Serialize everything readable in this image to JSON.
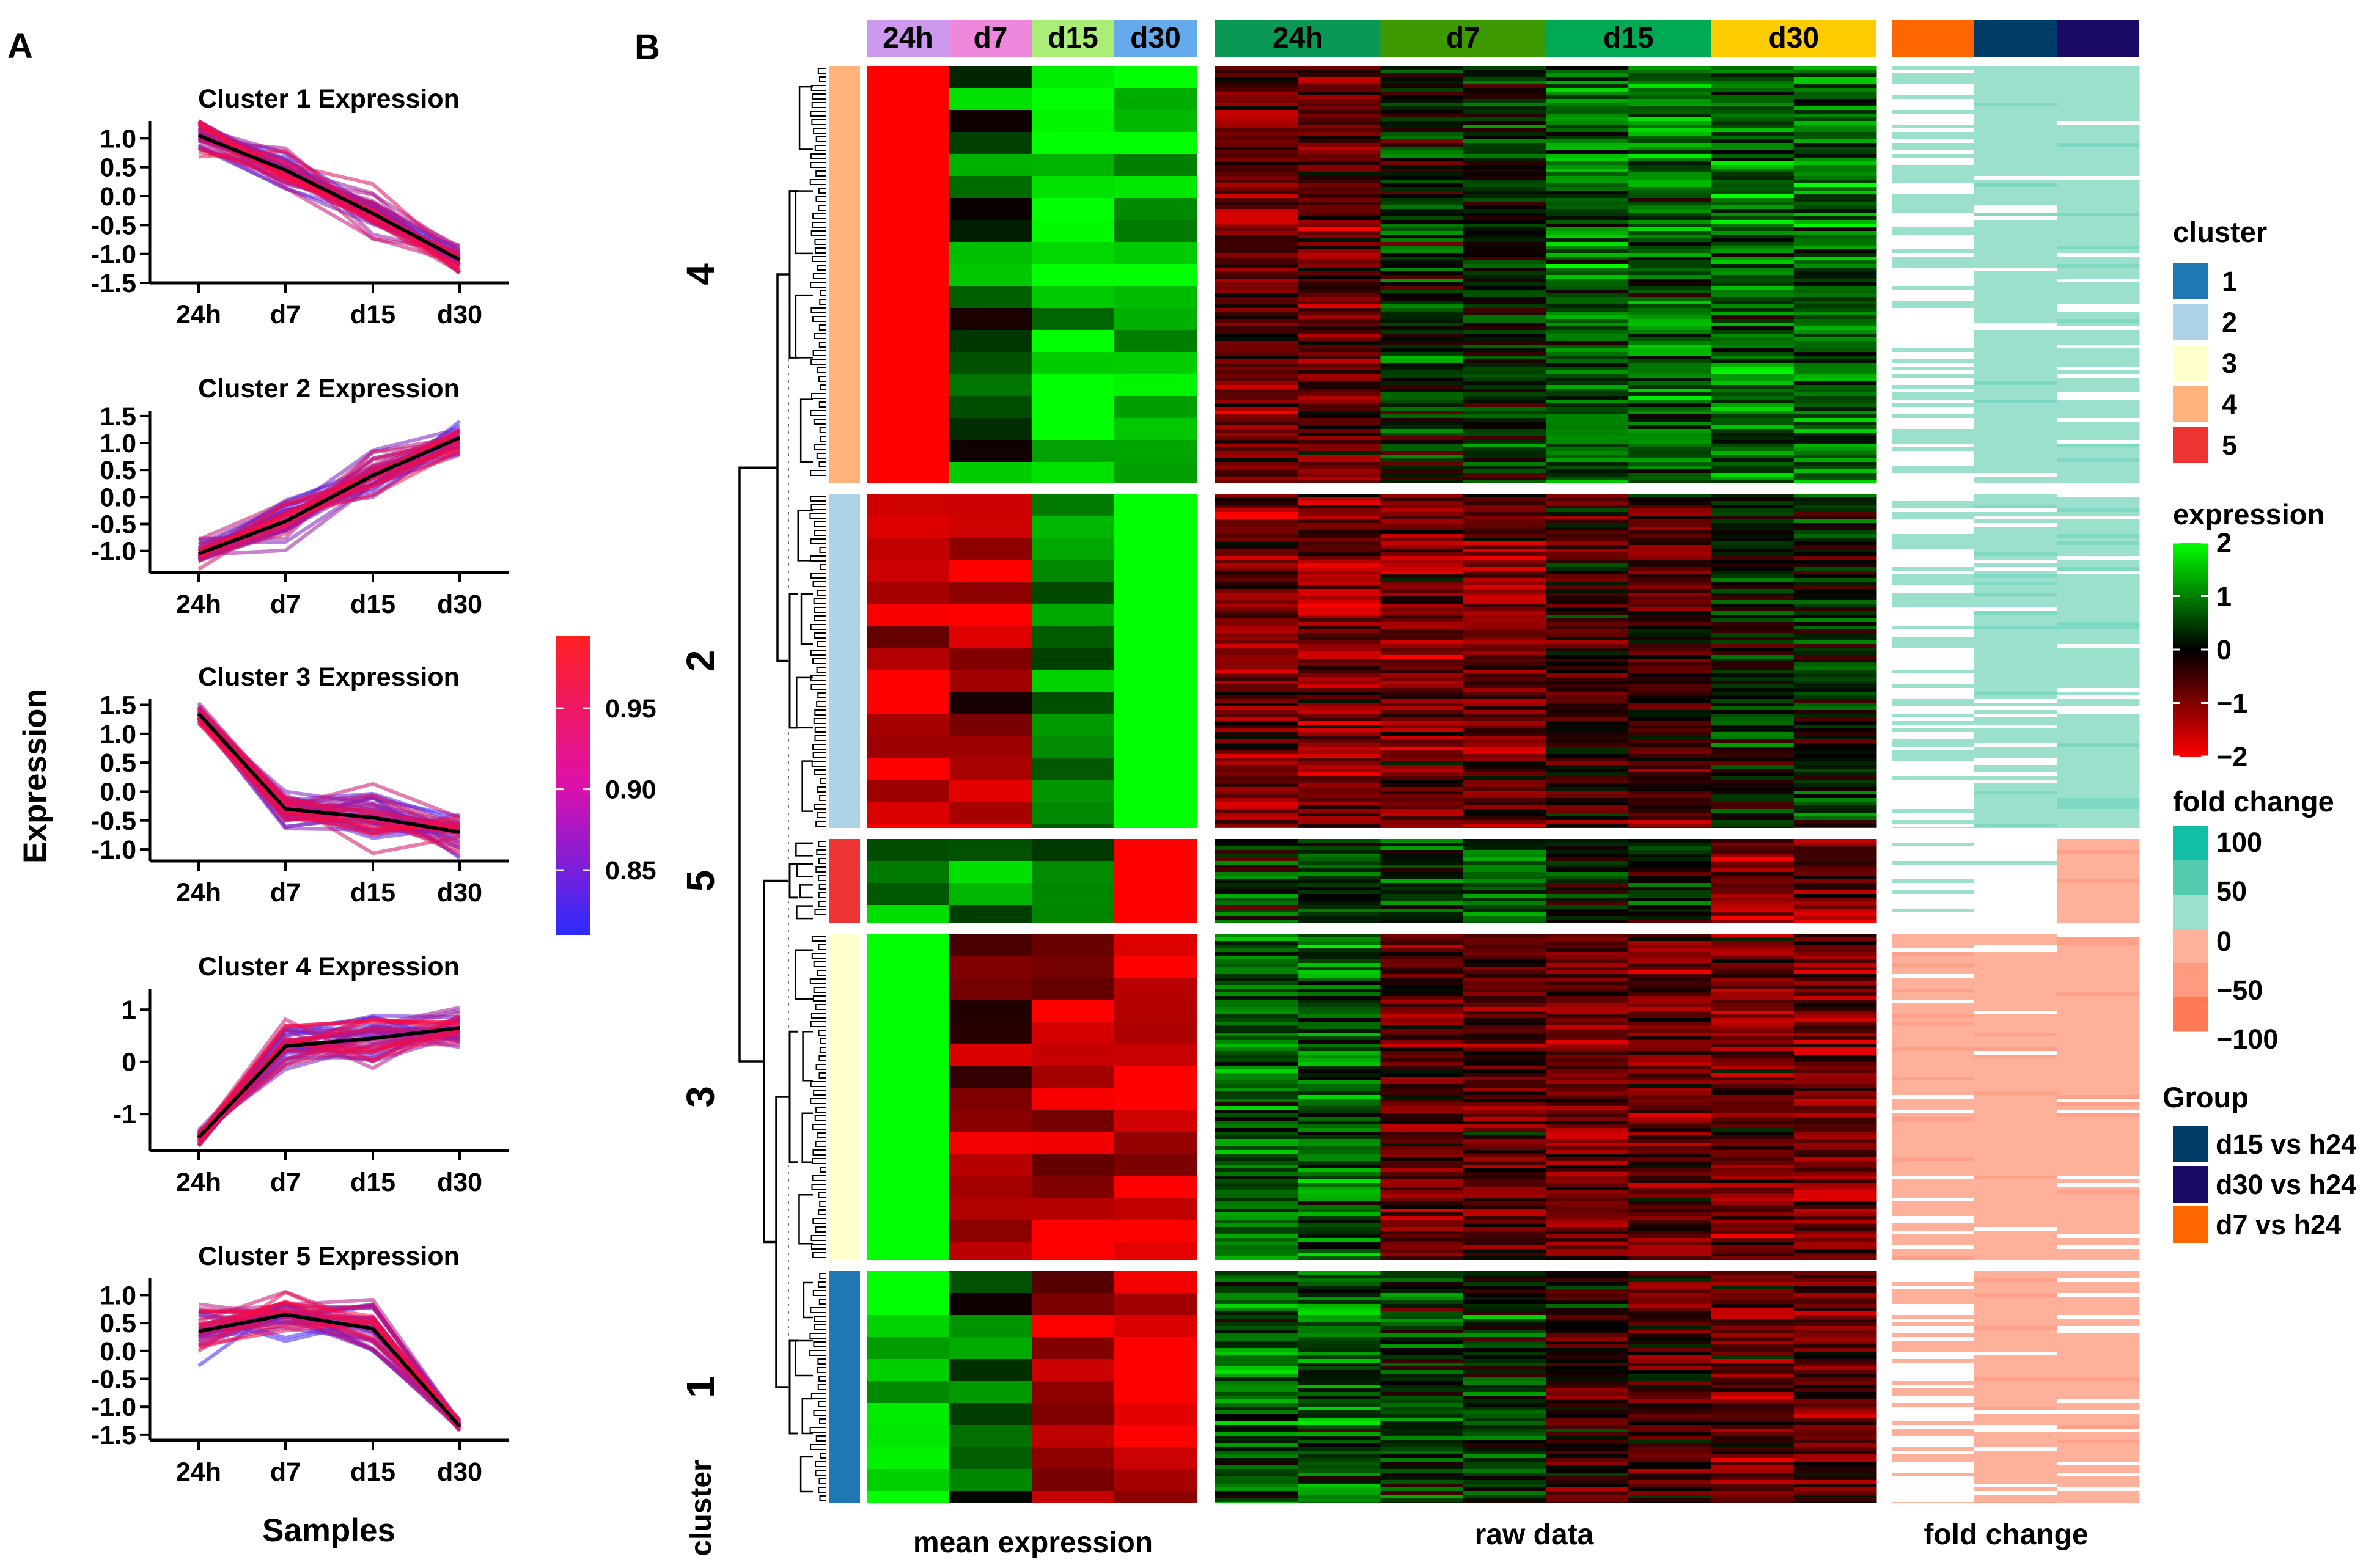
{
  "panels": {
    "a": "A",
    "b": "B"
  },
  "chart_data": [
    {
      "type": "line",
      "panel": "A",
      "xlabel": "Samples",
      "ylabel": "Expression",
      "categories": [
        "24h",
        "d7",
        "d15",
        "d30"
      ],
      "subplots": [
        {
          "title": "Cluster 1 Expression",
          "ylim": [
            -1.5,
            1.3
          ],
          "yticks": [
            "1.0",
            "0.5",
            "0.0",
            "-0.5",
            "-1.0",
            "-1.5"
          ],
          "ytick_values": [
            1.0,
            0.5,
            0.0,
            -0.5,
            -1.0,
            -1.5
          ],
          "mean": [
            1.05,
            0.45,
            -0.3,
            -1.1
          ],
          "band": [
            0.6,
            0.55,
            0.6,
            0.35
          ]
        },
        {
          "title": "Cluster 2 Expression",
          "ylim": [
            -1.4,
            1.6
          ],
          "yticks": [
            "1.5",
            "1.0",
            "0.5",
            "0.0",
            "-0.5",
            "-1.0"
          ],
          "ytick_values": [
            1.5,
            1.0,
            0.5,
            0.0,
            -0.5,
            -1.0
          ],
          "mean": [
            -1.05,
            -0.45,
            0.4,
            1.1
          ],
          "band": [
            0.4,
            0.6,
            0.65,
            0.4
          ]
        },
        {
          "title": "Cluster 3 Expression",
          "ylim": [
            -1.2,
            1.6
          ],
          "yticks": [
            "1.5",
            "1.0",
            "0.5",
            "0.0",
            "-0.5",
            "-1.0"
          ],
          "ytick_values": [
            1.5,
            1.0,
            0.5,
            0.0,
            -0.5,
            -1.0
          ],
          "mean": [
            1.35,
            -0.3,
            -0.45,
            -0.7
          ],
          "band": [
            0.25,
            0.65,
            0.75,
            0.55
          ]
        },
        {
          "title": "Cluster 4 Expression",
          "ylim": [
            -1.7,
            1.4
          ],
          "yticks": [
            "1",
            "0",
            "-1"
          ],
          "ytick_values": [
            1,
            0,
            -1
          ],
          "mean": [
            -1.45,
            0.3,
            0.45,
            0.65
          ],
          "band": [
            0.25,
            0.75,
            0.75,
            0.55
          ]
        },
        {
          "title": "Cluster 5 Expression",
          "ylim": [
            -1.6,
            1.3
          ],
          "yticks": [
            "1.0",
            "0.5",
            "0.0",
            "-0.5",
            "-1.0",
            "-1.5"
          ],
          "ytick_values": [
            1.0,
            0.5,
            0.0,
            -0.5,
            -1.0,
            -1.5
          ],
          "mean": [
            0.35,
            0.65,
            0.4,
            -1.35
          ],
          "band": [
            0.8,
            0.6,
            0.8,
            0.15
          ]
        }
      ],
      "colorbar": {
        "ticks": [
          "0.95",
          "0.90",
          "0.85"
        ],
        "tick_values": [
          0.95,
          0.9,
          0.85
        ],
        "range": [
          0.81,
          0.995
        ],
        "colors": [
          "#2b2bff",
          "#ff2020"
        ]
      }
    },
    {
      "type": "heatmap",
      "panel": "B",
      "time_points": [
        "24h",
        "d7",
        "d15",
        "d30"
      ],
      "mean_header_colors": [
        "#cc99ee",
        "#ee88dd",
        "#aaee77",
        "#66aaee"
      ],
      "raw_header_colors": [
        "#0a9955",
        "#3d9900",
        "#00aa55",
        "#ffcc00"
      ],
      "fc_header_colors": [
        "#ff6600",
        "#003d66",
        "#1a0a66"
      ],
      "cluster_order": [
        "4",
        "2",
        "5",
        "3",
        "1"
      ],
      "cluster_sizes": [
        450,
        370,
        90,
        355,
        245
      ],
      "cluster_strip_colors": [
        "#ffb27a",
        "#acd4e6",
        "#ee3333",
        "#ffffcc",
        "#1f77b4"
      ],
      "mean_expression": [
        [
          -2.0,
          0.4,
          1.3,
          1.4
        ],
        [
          -1.3,
          -1.1,
          0.9,
          1.9
        ],
        [
          0.6,
          1.2,
          0.7,
          -2.0
        ],
        [
          2.0,
          -0.9,
          -1.2,
          -1.3
        ],
        [
          1.5,
          0.6,
          -0.9,
          -1.6
        ]
      ],
      "raw_tendency": [
        [
          -0.7,
          0.2,
          0.7,
          0.8
        ],
        [
          -0.9,
          -0.8,
          -0.4,
          0.2
        ],
        [
          0.3,
          0.5,
          0.2,
          -0.8
        ],
        [
          0.7,
          -0.6,
          -0.7,
          -0.8
        ],
        [
          0.6,
          0.3,
          -0.4,
          -0.6
        ]
      ],
      "fold_change_sign": [
        [
          "mixed_pos",
          "pos",
          "pos"
        ],
        [
          "mixed_pos",
          "pos",
          "pos"
        ],
        [
          "blank",
          "blank",
          "neg"
        ],
        [
          "neg",
          "neg",
          "neg"
        ],
        [
          "mixed_neg",
          "neg",
          "neg"
        ]
      ],
      "bottom_labels": {
        "mean": "mean expression",
        "raw": "raw data",
        "fc": "fold change",
        "cluster": "cluster"
      },
      "legends": {
        "cluster": {
          "title": "cluster",
          "labels": [
            "1",
            "2",
            "3",
            "4",
            "5"
          ],
          "colors": [
            "#1f77b4",
            "#acd4e6",
            "#ffffcc",
            "#ffb27a",
            "#ee3333"
          ]
        },
        "expression": {
          "title": "expression",
          "labels": [
            "2",
            "1",
            "0",
            "−1",
            "−2"
          ],
          "values": [
            2,
            1,
            0,
            -1,
            -2
          ]
        },
        "fold_change": {
          "title": "fold change",
          "labels": [
            "100",
            "50",
            "0",
            "−50",
            "−100"
          ],
          "colors": [
            "#11bfa5",
            "#55ccb0",
            "#9be0cc",
            "#ffb09a",
            "#ff9a80",
            "#ff7a55"
          ]
        },
        "group": {
          "title": "Group",
          "labels": [
            "d15 vs h24",
            "d30 vs h24",
            "d7 vs h24"
          ],
          "colors": [
            "#003d66",
            "#1a0a66",
            "#ff6600"
          ]
        }
      }
    }
  ]
}
